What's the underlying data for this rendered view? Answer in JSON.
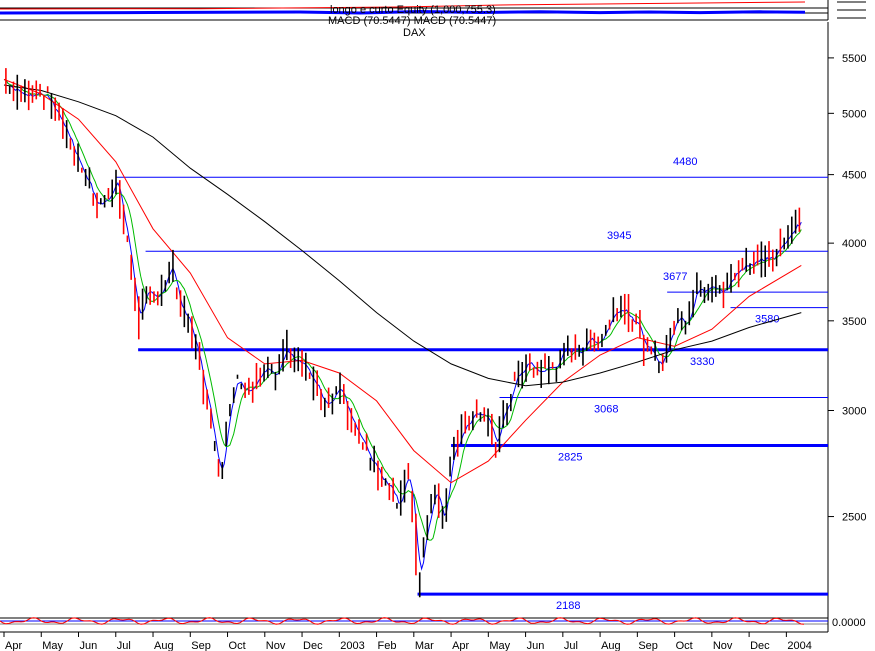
{
  "header": {
    "line1": "longo e curto Equity (1,000,755.3)",
    "line2": "MACD (70.5447) MACD (70.5447)",
    "title": "DAX"
  },
  "colors": {
    "background": "#ffffff",
    "candle_up": "#000000",
    "candle_down": "#ff0000",
    "ma_short": "#0000ff",
    "ma_mid": "#00bb00",
    "ma_long": "#ff0000",
    "ma_200": "#000000",
    "level_line": "#0000ff",
    "macd": "#ff0000"
  },
  "chart_data": {
    "type": "line",
    "title": "DAX",
    "scale": "log",
    "ylim": [
      2050,
      5850
    ],
    "y_ticks": [
      2500,
      3000,
      3500,
      4000,
      4500,
      5000,
      5500
    ],
    "x_labels": [
      "Apr",
      "May",
      "Jun",
      "Jul",
      "Aug",
      "Sep",
      "Oct",
      "Nov",
      "Dec",
      "2003",
      "Feb",
      "Mar",
      "Apr",
      "May",
      "Jun",
      "Jul",
      "Aug",
      "Sep",
      "Oct",
      "Nov",
      "Dec",
      "2004"
    ],
    "x_positions": [
      0,
      1,
      2,
      3,
      4,
      5,
      6,
      7,
      8,
      9,
      10,
      11,
      12,
      13,
      14,
      15,
      16,
      17,
      18,
      19,
      20,
      21
    ],
    "levels": [
      {
        "label": "4480",
        "value": 4480,
        "x_from": 3,
        "x_to": 22,
        "thick": false
      },
      {
        "label": "3945",
        "value": 3945,
        "x_from": 3.8,
        "x_to": 22,
        "thick": false
      },
      {
        "label": "3677",
        "value": 3677,
        "x_from": 17.8,
        "x_to": 22,
        "thick": false
      },
      {
        "label": "3580",
        "value": 3580,
        "x_from": 19.5,
        "x_to": 22,
        "thick": false
      },
      {
        "label": "3330",
        "value": 3330,
        "x_from": 3.6,
        "x_to": 22,
        "thick": true
      },
      {
        "label": "3068",
        "value": 3068,
        "x_from": 13.3,
        "x_to": 22,
        "thick": false
      },
      {
        "label": "2825",
        "value": 2825,
        "x_from": 12,
        "x_to": 22,
        "thick": true
      },
      {
        "label": "2188",
        "value": 2188,
        "x_from": 11.1,
        "x_to": 22,
        "thick": true
      }
    ],
    "price": {
      "x": [
        0,
        0.5,
        1,
        1.5,
        2,
        2.5,
        3,
        3.3,
        3.6,
        3.8,
        4,
        4.3,
        4.5,
        4.7,
        5,
        5.3,
        5.6,
        5.8,
        6,
        6.2,
        6.5,
        7,
        7.3,
        7.5,
        7.8,
        8,
        8.3,
        8.6,
        9,
        9.4,
        9.7,
        10,
        10.3,
        10.6,
        10.8,
        11,
        11.1,
        11.3,
        11.6,
        11.8,
        12,
        12.3,
        12.6,
        12.9,
        13.2,
        13.4,
        13.7,
        14,
        14.5,
        15,
        15.5,
        16,
        16.5,
        16.8,
        17,
        17.3,
        17.6,
        17.9,
        18.1,
        18.3,
        18.6,
        19,
        19.3,
        19.6,
        19.9,
        20.2,
        20.6,
        21,
        21.2,
        21.4
      ],
      "close": [
        5300,
        5150,
        5200,
        4950,
        4600,
        4250,
        4450,
        4000,
        3500,
        3650,
        3620,
        3750,
        3850,
        3600,
        3450,
        3200,
        2850,
        2700,
        2950,
        3200,
        3100,
        3250,
        3150,
        3350,
        3300,
        3250,
        3150,
        3000,
        3100,
        2900,
        2800,
        2700,
        2650,
        2550,
        2700,
        2500,
        2200,
        2450,
        2650,
        2450,
        2800,
        2900,
        3000,
        2950,
        2850,
        2980,
        3150,
        3250,
        3200,
        3300,
        3350,
        3400,
        3600,
        3550,
        3450,
        3300,
        3250,
        3420,
        3550,
        3500,
        3700,
        3750,
        3650,
        3800,
        3850,
        3880,
        3920,
        4050,
        4100,
        4150
      ]
    },
    "series": [
      {
        "x": [
          0,
          1,
          2,
          3,
          4,
          5,
          6,
          7,
          8,
          9,
          10,
          11,
          12,
          13,
          14,
          15,
          16,
          17,
          18,
          19,
          20,
          21.4
        ],
        "values": [
          5300,
          5170,
          4950,
          4600,
          4100,
          3800,
          3400,
          3250,
          3270,
          3200,
          3050,
          2800,
          2650,
          2750,
          2950,
          3150,
          3300,
          3400,
          3350,
          3450,
          3650,
          3850
        ]
      },
      {
        "x": [
          0,
          1,
          2,
          3,
          4,
          5,
          6,
          7,
          8,
          9,
          10,
          11,
          12,
          13,
          14,
          15,
          16,
          17,
          18,
          19,
          20,
          21.4
        ],
        "values": [
          5250,
          5200,
          5100,
          4980,
          4800,
          4550,
          4350,
          4150,
          3950,
          3750,
          3550,
          3380,
          3250,
          3170,
          3130,
          3150,
          3200,
          3260,
          3330,
          3380,
          3460,
          3550
        ]
      }
    ]
  },
  "macd_band": {
    "label": "0.0000"
  }
}
